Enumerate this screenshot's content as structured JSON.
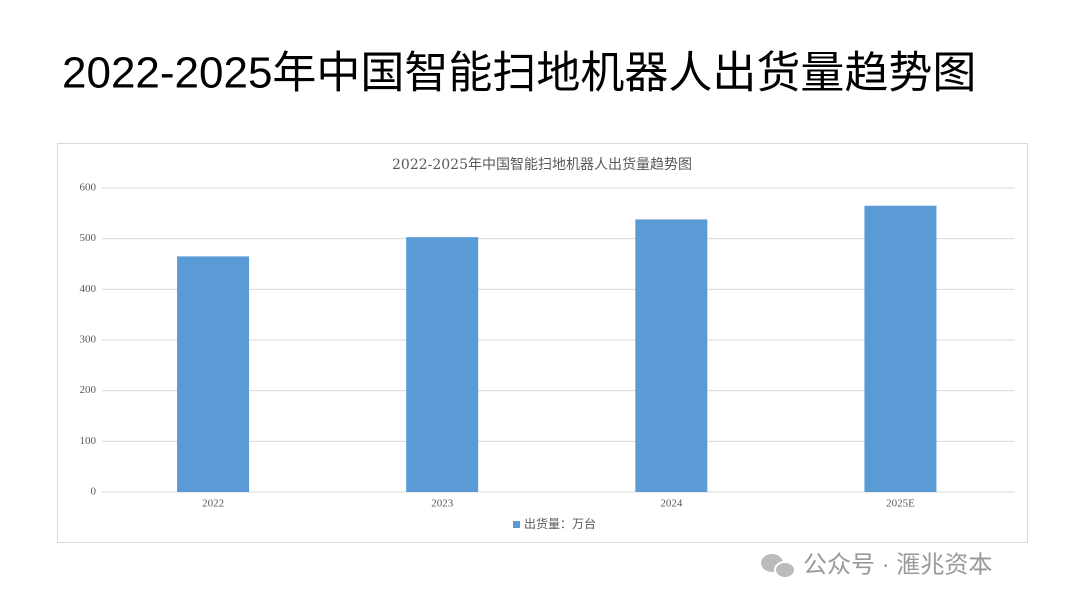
{
  "slide_title": "2022-2025年中国智能扫地机器人出货量趋势图",
  "watermark": "公众号 · 滙兆资本",
  "chart_data": {
    "type": "bar",
    "title": "2022-2025年中国智能扫地机器人出货量趋势图",
    "categories": [
      "2022",
      "2023",
      "2024",
      "2025E"
    ],
    "series": [
      {
        "name": "出货量：万台",
        "color": "#5b9bd5",
        "values": [
          465,
          503,
          538,
          565
        ]
      }
    ],
    "ylim": [
      0,
      600
    ],
    "yticks": [
      0,
      100,
      200,
      300,
      400,
      500,
      600
    ],
    "grid": true,
    "legend": "bottom"
  }
}
